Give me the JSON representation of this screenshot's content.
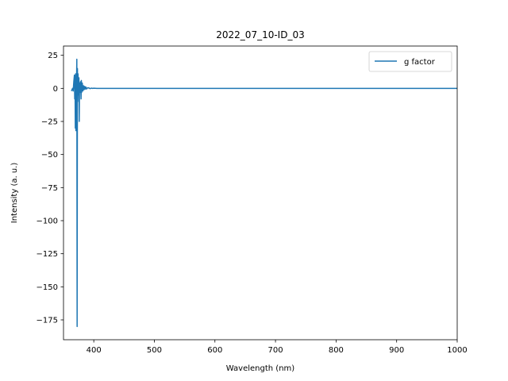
{
  "chart_data": {
    "type": "line",
    "title": "2022_07_10-ID_03",
    "xlabel": "Wavelength (nm)",
    "ylabel": "Intensity (a. u.)",
    "xlim": [
      350,
      1000
    ],
    "ylim": [
      -190,
      32
    ],
    "xticks": [
      400,
      500,
      600,
      700,
      800,
      900,
      1000
    ],
    "yticks": [
      25,
      0,
      -25,
      -50,
      -75,
      -100,
      -125,
      -150,
      -175
    ],
    "legend_position": "top-right",
    "grid": false,
    "series": [
      {
        "name": "g factor",
        "color": "#1f77b4",
        "x": [
          363,
          364,
          365,
          366,
          367,
          368,
          368.5,
          369,
          369.5,
          370,
          370.5,
          371,
          371.5,
          372,
          372.5,
          373,
          373.5,
          374,
          374.5,
          375,
          375.5,
          376,
          376.5,
          377,
          377.5,
          378,
          378.5,
          379,
          379.5,
          380,
          381,
          382,
          383,
          384,
          385,
          386,
          387,
          388,
          390,
          392,
          394,
          396,
          398,
          400,
          405,
          410,
          420,
          450,
          500,
          600,
          700,
          800,
          900,
          1000
        ],
        "y": [
          -2,
          -1,
          0,
          -2,
          5,
          10,
          -8,
          9,
          -30,
          11,
          -32,
          10,
          5,
          22,
          -180,
          15,
          -10,
          11,
          3,
          -5,
          8,
          -25,
          4,
          2,
          -3,
          5,
          1,
          -8,
          6,
          -3,
          4,
          -2,
          2,
          -1,
          1.5,
          -0.5,
          1,
          -0.5,
          0.5,
          0.3,
          -0.2,
          0.2,
          0,
          0.1,
          0,
          0,
          0,
          0,
          0,
          0,
          0,
          0,
          0,
          0
        ]
      }
    ]
  }
}
